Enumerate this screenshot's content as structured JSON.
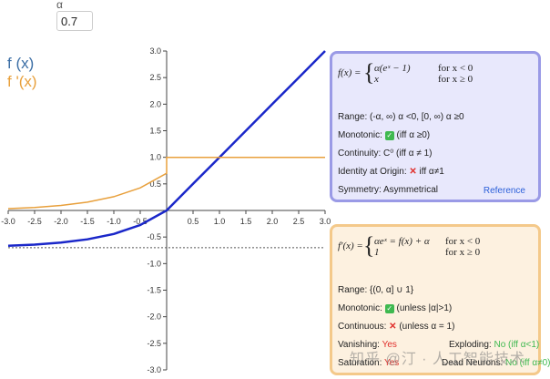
{
  "controls": {
    "alpha_label": "α",
    "alpha_value": "0.7"
  },
  "legend": {
    "f": "f (x)",
    "df": "f '(x)"
  },
  "colors": {
    "f": "#1a27c9",
    "df": "#e8a03c",
    "legend_f": "#3b6ea5"
  },
  "chart_data": {
    "type": "line",
    "xlim": [
      -3,
      3
    ],
    "ylim": [
      -3,
      3
    ],
    "x_ticks": [
      "-3.0",
      "-2.5",
      "-2.0",
      "-1.5",
      "-1.0",
      "-0.5",
      "0.5",
      "1.0",
      "1.5",
      "2.0",
      "2.5",
      "3.0"
    ],
    "y_ticks": [
      "3.0",
      "2.5",
      "2.0",
      "1.5",
      "1.0",
      "0.5",
      "-0.5",
      "-1.0",
      "-1.5",
      "-2.0",
      "-2.5",
      "-3.0"
    ],
    "alpha": 0.7,
    "series": [
      {
        "name": "f (x)",
        "x": [
          -3,
          -2.5,
          -2,
          -1.5,
          -1,
          -0.5,
          0,
          0.5,
          1,
          1.5,
          2,
          2.5,
          3
        ],
        "y": [
          -0.665,
          -0.643,
          -0.605,
          -0.544,
          -0.442,
          -0.275,
          0,
          0.5,
          1,
          1.5,
          2,
          2.5,
          3
        ]
      },
      {
        "name": "f '(x)",
        "x": [
          -3,
          -2.5,
          -2,
          -1.5,
          -1,
          -0.5,
          0,
          0,
          0.5,
          1,
          1.5,
          2,
          2.5,
          3
        ],
        "y": [
          0.035,
          0.057,
          0.095,
          0.156,
          0.258,
          0.425,
          0.7,
          1,
          1,
          1,
          1,
          1,
          1,
          1
        ]
      }
    ],
    "asymptote_y": -0.7
  },
  "panel_f": {
    "name": "f(x) =",
    "case1": "α(eˣ − 1)",
    "cond1": "for x < 0",
    "case2": "x",
    "cond2": "for x ≥ 0",
    "range": "Range: (-α, ∞) α <0, [0, ∞) α ≥0",
    "monotonic_label": "Monotonic:",
    "monotonic_note": "(iff α ≥0)",
    "continuity": "Continuity: C⁰ (iff α ≠ 1)",
    "identity_label": "Identity at Origin:",
    "identity_note": "iff α≠1",
    "symmetry": "Symmetry: Asymmetrical",
    "reference": "Reference"
  },
  "panel_d": {
    "name": "f′(x) =",
    "case1": "αeˣ = f(x) + α",
    "cond1": "for x < 0",
    "case2": "1",
    "cond2": "for x ≥ 0",
    "range": "Range: {(0, α] ∪ 1}",
    "monotonic_label": "Monotonic:",
    "monotonic_note": "(unless |α|>1)",
    "continuous_label": "Continuous:",
    "continuous_note": "(unless α = 1)",
    "vanishing_label": "Vanishing:",
    "vanishing_value": "Yes",
    "exploding_label": "Exploding:",
    "exploding_value": "No (iff α<1)",
    "saturation_label": "Saturation:",
    "saturation_value": "Yes",
    "dead_label": "Dead Neurons:",
    "dead_value": "No (iff α≠0)"
  },
  "watermark": "知乎 @汀 · 人工智能技术"
}
